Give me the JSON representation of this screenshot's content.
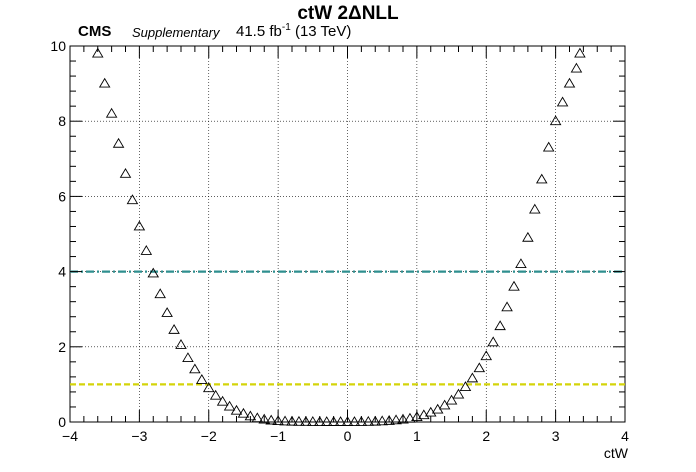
{
  "header": {
    "title": "ctW 2ΔNLL",
    "experiment": "CMS",
    "status": "Supplementary",
    "lumi_value": "41.5 fb",
    "lumi_exp": "-1",
    "energy": "(13 TeV)"
  },
  "chart_data": {
    "type": "scatter",
    "title": "ctW 2ΔNLL",
    "xlabel": "ctW",
    "ylabel": "",
    "xlim": [
      -4,
      4
    ],
    "ylim": [
      0,
      10
    ],
    "x_ticks": [
      -4,
      -3,
      -2,
      -1,
      0,
      1,
      2,
      3,
      4
    ],
    "y_ticks": [
      0,
      2,
      4,
      6,
      8,
      10
    ],
    "grid": true,
    "marker": "open-triangle",
    "series": [
      {
        "points": [
          [
            -3.6,
            9.8
          ],
          [
            -3.5,
            9.0
          ],
          [
            -3.4,
            8.2
          ],
          [
            -3.3,
            7.4
          ],
          [
            -3.2,
            6.6
          ],
          [
            -3.1,
            5.9
          ],
          [
            -3.0,
            5.2
          ],
          [
            -2.9,
            4.55
          ],
          [
            -2.8,
            3.95
          ],
          [
            -2.7,
            3.4
          ],
          [
            -2.6,
            2.9
          ],
          [
            -2.5,
            2.45
          ],
          [
            -2.4,
            2.05
          ],
          [
            -2.3,
            1.7
          ],
          [
            -2.2,
            1.4
          ],
          [
            -2.1,
            1.12
          ],
          [
            -2.0,
            0.9
          ],
          [
            -1.9,
            0.7
          ],
          [
            -1.8,
            0.54
          ],
          [
            -1.7,
            0.41
          ],
          [
            -1.6,
            0.3
          ],
          [
            -1.5,
            0.22
          ],
          [
            -1.4,
            0.15
          ],
          [
            -1.3,
            0.1
          ],
          [
            -1.2,
            0.065
          ],
          [
            -1.1,
            0.04
          ],
          [
            -1.0,
            0.025
          ],
          [
            -0.9,
            0.015
          ],
          [
            -0.8,
            0.01
          ],
          [
            -0.7,
            0.006
          ],
          [
            -0.6,
            0.004
          ],
          [
            -0.5,
            0.002
          ],
          [
            -0.4,
            0.001
          ],
          [
            -0.3,
            0.0
          ],
          [
            -0.2,
            0.0
          ],
          [
            -0.1,
            0.0
          ],
          [
            0.0,
            0.0
          ],
          [
            0.1,
            0.001
          ],
          [
            0.2,
            0.002
          ],
          [
            0.3,
            0.005
          ],
          [
            0.4,
            0.01
          ],
          [
            0.5,
            0.018
          ],
          [
            0.6,
            0.03
          ],
          [
            0.7,
            0.045
          ],
          [
            0.8,
            0.065
          ],
          [
            0.9,
            0.09
          ],
          [
            1.0,
            0.13
          ],
          [
            1.1,
            0.18
          ],
          [
            1.2,
            0.25
          ],
          [
            1.3,
            0.33
          ],
          [
            1.4,
            0.44
          ],
          [
            1.5,
            0.57
          ],
          [
            1.6,
            0.73
          ],
          [
            1.7,
            0.93
          ],
          [
            1.8,
            1.16
          ],
          [
            1.9,
            1.43
          ],
          [
            2.0,
            1.75
          ],
          [
            2.1,
            2.12
          ],
          [
            2.2,
            2.55
          ],
          [
            2.3,
            3.05
          ],
          [
            2.4,
            3.6
          ],
          [
            2.5,
            4.2
          ],
          [
            2.6,
            4.9
          ],
          [
            2.7,
            5.65
          ],
          [
            2.8,
            6.45
          ],
          [
            2.9,
            7.3
          ],
          [
            3.0,
            8.0
          ],
          [
            3.1,
            8.5
          ],
          [
            3.2,
            9.0
          ],
          [
            3.3,
            9.4
          ],
          [
            3.35,
            9.8
          ]
        ]
      }
    ],
    "reference_lines": [
      {
        "y": 4,
        "color": "#2f8f8f",
        "style": "dash-dot"
      },
      {
        "y": 1,
        "color": "#d4d40a",
        "style": "dashed"
      }
    ]
  }
}
